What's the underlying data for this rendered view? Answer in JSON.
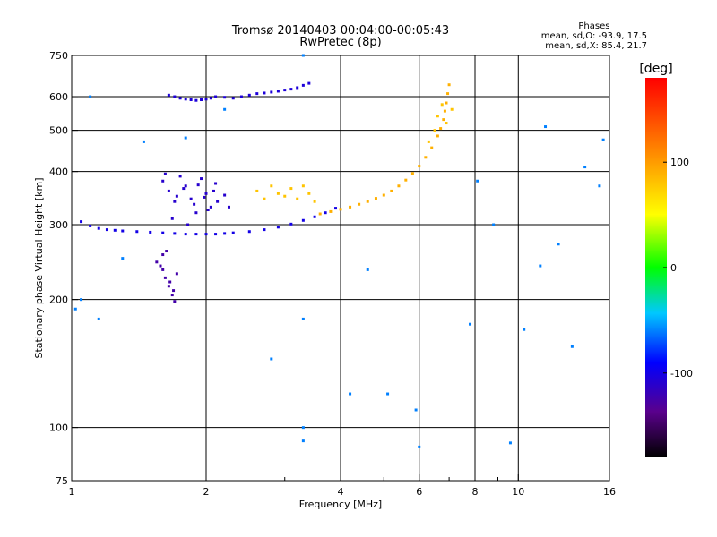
{
  "chart_data": {
    "type": "scatter",
    "title": "Tromsø 20140403 00:04:00-00:05:43",
    "subtitle": "RwPretec (8p)",
    "stats": {
      "heading": "Phases",
      "line_o": "mean, sd,O: -93.9, 17.5",
      "line_x": "mean, sd,X:  85.4, 21.7"
    },
    "xlabel": "Frequency [MHz]",
    "ylabel": "Stationary phase Virtual Height [km]",
    "xscale": "log",
    "yscale": "log",
    "xlim": [
      1,
      16
    ],
    "ylim": [
      75,
      750
    ],
    "x_ticks": [
      1,
      2,
      4,
      6,
      8,
      10,
      16
    ],
    "x_tick_labels": [
      "1",
      "2",
      "4",
      "6",
      "8",
      "10",
      "16"
    ],
    "x_minor_ticks": [
      3,
      5,
      7,
      9
    ],
    "y_ticks": [
      75,
      100,
      200,
      300,
      400,
      500,
      600,
      750
    ],
    "y_tick_labels": [
      "75",
      "100",
      "200",
      "300",
      "400",
      "500",
      "600",
      "750"
    ],
    "grid": true,
    "colorbar": {
      "label": "[deg]",
      "range": [
        -180,
        180
      ],
      "ticks": [
        100,
        0,
        -100
      ],
      "tick_labels": [
        "100",
        "0",
        "-100"
      ]
    },
    "series": [
      {
        "kind": "o-trace-lower",
        "x": [
          1.05,
          1.1,
          1.15,
          1.2,
          1.25,
          1.3,
          1.4,
          1.5,
          1.6,
          1.7,
          1.8,
          1.9,
          2.0,
          2.1,
          2.2,
          2.3,
          2.5,
          2.7,
          2.9,
          3.1,
          3.3,
          3.5,
          3.7,
          3.9
        ],
        "y": [
          305,
          298,
          294,
          292,
          291,
          290,
          289,
          288,
          287,
          286,
          285,
          285,
          285,
          285,
          286,
          287,
          289,
          292,
          296,
          301,
          307,
          313,
          320,
          328
        ],
        "phase": -100
      },
      {
        "kind": "o-trace-upper",
        "x": [
          1.65,
          1.7,
          1.75,
          1.8,
          1.85,
          1.9,
          1.95,
          2.0,
          2.05,
          2.1,
          2.2,
          2.3,
          2.4,
          2.5,
          2.6,
          2.7,
          2.8,
          2.9,
          3.0,
          3.1,
          3.2,
          3.3,
          3.4
        ],
        "y": [
          605,
          600,
          595,
          592,
          590,
          588,
          590,
          592,
          595,
          600,
          598,
          595,
          600,
          605,
          610,
          612,
          615,
          618,
          622,
          625,
          630,
          638,
          645
        ],
        "phase": -105
      },
      {
        "kind": "o-spread-f",
        "x": [
          1.6,
          1.65,
          1.7,
          1.75,
          1.8,
          1.85,
          1.9,
          1.95,
          2.0,
          2.05,
          2.1,
          1.62,
          1.68,
          1.72,
          1.78,
          1.82,
          1.88,
          1.92,
          1.98,
          2.02,
          2.08,
          2.12,
          2.2,
          2.25
        ],
        "y": [
          380,
          360,
          340,
          390,
          370,
          345,
          320,
          385,
          355,
          330,
          375,
          395,
          310,
          350,
          365,
          300,
          335,
          372,
          348,
          325,
          360,
          340,
          352,
          330
        ],
        "phase": -110
      },
      {
        "kind": "o-lower-spread",
        "x": [
          1.55,
          1.6,
          1.62,
          1.65,
          1.68,
          1.7,
          1.72,
          1.6,
          1.58,
          1.66,
          1.63,
          1.69
        ],
        "y": [
          245,
          235,
          225,
          215,
          205,
          198,
          230,
          255,
          240,
          220,
          260,
          210
        ],
        "phase": -125
      },
      {
        "kind": "x-trace",
        "x": [
          3.6,
          3.8,
          4.0,
          4.2,
          4.4,
          4.6,
          4.8,
          5.0,
          5.2,
          5.4,
          5.6,
          5.8,
          6.0,
          6.2,
          6.4,
          6.6,
          6.7,
          6.8,
          6.85,
          6.9,
          6.95,
          7.0
        ],
        "y": [
          318,
          322,
          326,
          330,
          335,
          340,
          346,
          352,
          360,
          370,
          382,
          396,
          412,
          432,
          455,
          485,
          505,
          530,
          555,
          580,
          610,
          640
        ],
        "phase": 90
      },
      {
        "kind": "x-side",
        "x": [
          3.0,
          3.1,
          3.2,
          3.3,
          3.4,
          3.5,
          2.6,
          2.7,
          2.8,
          2.9,
          6.3,
          6.5,
          6.6,
          6.75,
          6.9,
          7.1
        ],
        "y": [
          350,
          365,
          345,
          370,
          355,
          340,
          360,
          345,
          370,
          355,
          470,
          500,
          540,
          575,
          520,
          560
        ],
        "phase": 80
      },
      {
        "kind": "scattered",
        "x": [
          1.1,
          1.05,
          1.15,
          1.3,
          1.45,
          1.8,
          2.2,
          3.3,
          3.3,
          3.3,
          3.3,
          5.9,
          6.0,
          8.8,
          9.6,
          11.2,
          11.5,
          12.3,
          13.2,
          15.5,
          2.8,
          4.2,
          4.6,
          5.1,
          7.8,
          8.1,
          10.3,
          14.1,
          15.2,
          1.02
        ],
        "y": [
          600,
          200,
          180,
          250,
          470,
          480,
          560,
          750,
          180,
          100,
          93,
          110,
          90,
          300,
          92,
          240,
          510,
          270,
          155,
          475,
          145,
          120,
          235,
          120,
          175,
          380,
          170,
          410,
          370,
          190
        ],
        "phase": -60
      }
    ]
  }
}
